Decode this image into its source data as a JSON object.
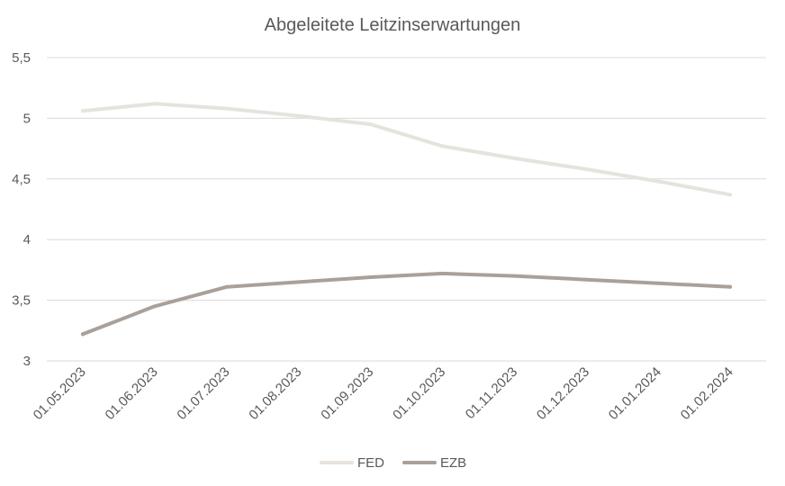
{
  "chart_data": {
    "type": "line",
    "title": "Abgeleitete Leitzinserwartungen",
    "xlabel": "",
    "ylabel": "",
    "categories": [
      "01.05.2023",
      "01.06.2023",
      "01.07.2023",
      "01.08.2023",
      "01.09.2023",
      "01.10.2023",
      "01.11.2023",
      "01.12.2023",
      "01.01.2024",
      "01.02.2024"
    ],
    "yticks": [
      "3",
      "3,5",
      "4",
      "4,5",
      "5",
      "5,5"
    ],
    "ylim": [
      3,
      5.5
    ],
    "grid": true,
    "legend_position": "bottom",
    "series": [
      {
        "name": "FED",
        "color": "#e6e3de",
        "values": [
          5.06,
          5.12,
          5.08,
          5.02,
          4.95,
          4.77,
          4.67,
          4.58,
          4.48,
          4.37
        ]
      },
      {
        "name": "EZB",
        "color": "#a9a099",
        "values": [
          3.22,
          3.45,
          3.61,
          3.65,
          3.69,
          3.72,
          3.7,
          3.67,
          3.64,
          3.61
        ]
      }
    ]
  }
}
